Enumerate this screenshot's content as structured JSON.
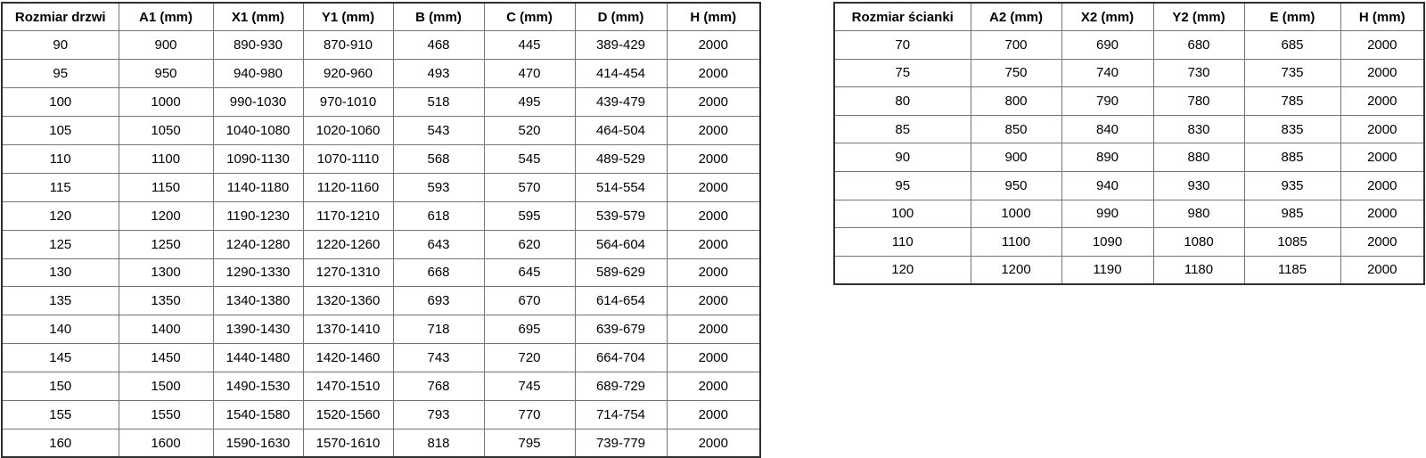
{
  "colors": {
    "background": "#ffffff",
    "outer_border": "#2f2f2f",
    "inner_border": "#757575",
    "text": "#000000"
  },
  "tables": [
    {
      "id": "door-size-table",
      "headers": [
        "Rozmiar drzwi",
        "A1 (mm)",
        "X1 (mm)",
        "Y1 (mm)",
        "B (mm)",
        "C (mm)",
        "D (mm)",
        "H (mm)"
      ],
      "rows": [
        [
          "90",
          "900",
          "890-930",
          "870-910",
          "468",
          "445",
          "389-429",
          "2000"
        ],
        [
          "95",
          "950",
          "940-980",
          "920-960",
          "493",
          "470",
          "414-454",
          "2000"
        ],
        [
          "100",
          "1000",
          "990-1030",
          "970-1010",
          "518",
          "495",
          "439-479",
          "2000"
        ],
        [
          "105",
          "1050",
          "1040-1080",
          "1020-1060",
          "543",
          "520",
          "464-504",
          "2000"
        ],
        [
          "110",
          "1100",
          "1090-1130",
          "1070-1110",
          "568",
          "545",
          "489-529",
          "2000"
        ],
        [
          "115",
          "1150",
          "1140-1180",
          "1120-1160",
          "593",
          "570",
          "514-554",
          "2000"
        ],
        [
          "120",
          "1200",
          "1190-1230",
          "1170-1210",
          "618",
          "595",
          "539-579",
          "2000"
        ],
        [
          "125",
          "1250",
          "1240-1280",
          "1220-1260",
          "643",
          "620",
          "564-604",
          "2000"
        ],
        [
          "130",
          "1300",
          "1290-1330",
          "1270-1310",
          "668",
          "645",
          "589-629",
          "2000"
        ],
        [
          "135",
          "1350",
          "1340-1380",
          "1320-1360",
          "693",
          "670",
          "614-654",
          "2000"
        ],
        [
          "140",
          "1400",
          "1390-1430",
          "1370-1410",
          "718",
          "695",
          "639-679",
          "2000"
        ],
        [
          "145",
          "1450",
          "1440-1480",
          "1420-1460",
          "743",
          "720",
          "664-704",
          "2000"
        ],
        [
          "150",
          "1500",
          "1490-1530",
          "1470-1510",
          "768",
          "745",
          "689-729",
          "2000"
        ],
        [
          "155",
          "1550",
          "1540-1580",
          "1520-1560",
          "793",
          "770",
          "714-754",
          "2000"
        ],
        [
          "160",
          "1600",
          "1590-1630",
          "1570-1610",
          "818",
          "795",
          "739-779",
          "2000"
        ]
      ]
    },
    {
      "id": "wall-size-table",
      "headers": [
        "Rozmiar ścianki",
        "A2 (mm)",
        "X2 (mm)",
        "Y2 (mm)",
        "E (mm)",
        "H (mm)"
      ],
      "rows": [
        [
          "70",
          "700",
          "690",
          "680",
          "685",
          "2000"
        ],
        [
          "75",
          "750",
          "740",
          "730",
          "735",
          "2000"
        ],
        [
          "80",
          "800",
          "790",
          "780",
          "785",
          "2000"
        ],
        [
          "85",
          "850",
          "840",
          "830",
          "835",
          "2000"
        ],
        [
          "90",
          "900",
          "890",
          "880",
          "885",
          "2000"
        ],
        [
          "95",
          "950",
          "940",
          "930",
          "935",
          "2000"
        ],
        [
          "100",
          "1000",
          "990",
          "980",
          "985",
          "2000"
        ],
        [
          "110",
          "1100",
          "1090",
          "1080",
          "1085",
          "2000"
        ],
        [
          "120",
          "1200",
          "1190",
          "1180",
          "1185",
          "2000"
        ]
      ]
    }
  ]
}
